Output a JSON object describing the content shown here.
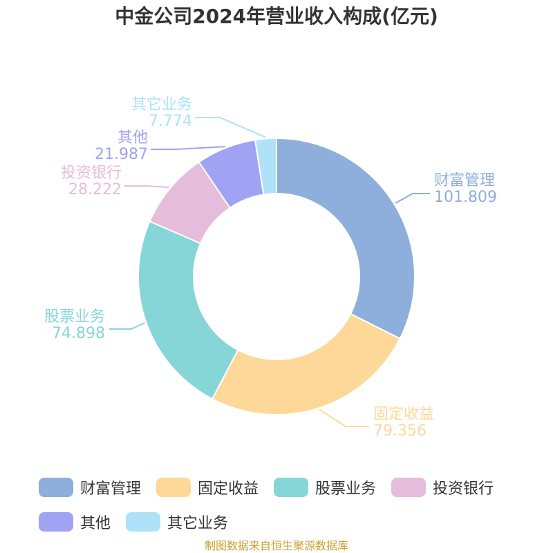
{
  "title": "中金公司2024年营业收入构成(亿元)",
  "source": "制图数据来自恒生聚源数据库",
  "chart_data": {
    "type": "pie",
    "style": "donut",
    "title": "中金公司2024年营业收入构成(亿元)",
    "slices": [
      {
        "name": "财富管理",
        "value": 101.809,
        "label": "101.809",
        "color": "#8eaedb"
      },
      {
        "name": "固定收益",
        "value": 79.356,
        "label": "79.356",
        "color": "#fed899"
      },
      {
        "name": "股票业务",
        "value": 74.898,
        "label": "74.898",
        "color": "#86d6d8"
      },
      {
        "name": "投资银行",
        "value": 28.222,
        "label": "28.222",
        "color": "#e6bcdb"
      },
      {
        "name": "其他",
        "value": 21.987,
        "label": "21.987",
        "color": "#a0a2f4"
      },
      {
        "name": "其它业务",
        "value": 7.774,
        "label": "7.774",
        "color": "#ade2f8"
      }
    ],
    "legend_position": "bottom"
  }
}
